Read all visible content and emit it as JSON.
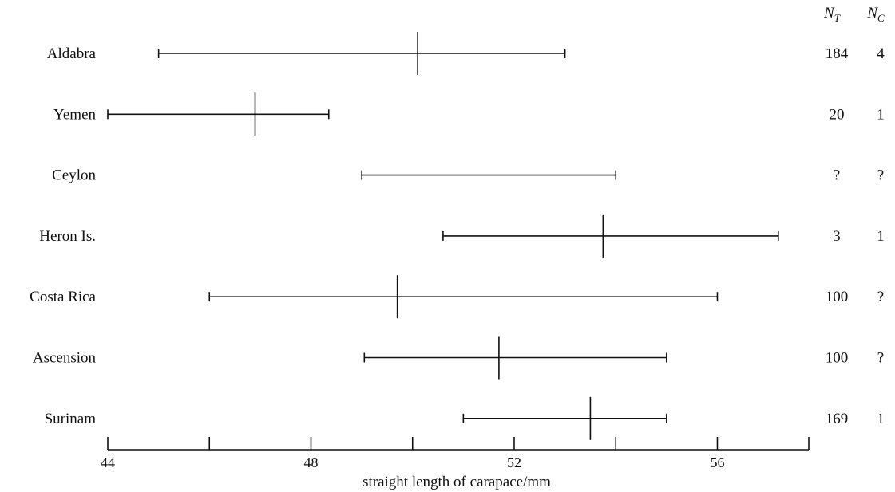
{
  "chart_data": {
    "type": "range",
    "xlabel": "straight length of carapace/mm",
    "xlim": [
      44,
      57.8
    ],
    "x_ticks": [
      44,
      46,
      48,
      50,
      52,
      54,
      56
    ],
    "x_tick_labels": [
      "44",
      "",
      "48",
      "",
      "52",
      "",
      "56"
    ],
    "count_headers": [
      {
        "main": "N",
        "sub": "T"
      },
      {
        "main": "N",
        "sub": "C"
      }
    ],
    "rows": [
      {
        "label": "Aldabra",
        "min": 45.0,
        "max": 53.0,
        "mean": 50.1,
        "N_T": "184",
        "N_C": "4"
      },
      {
        "label": "Yemen",
        "min": 44.0,
        "max": 48.35,
        "mean": 46.9,
        "N_T": "20",
        "N_C": "1"
      },
      {
        "label": "Ceylon",
        "min": 49.0,
        "max": 54.0,
        "mean": null,
        "N_T": "?",
        "N_C": "?"
      },
      {
        "label": "Heron Is.",
        "min": 50.6,
        "max": 57.2,
        "mean": 53.75,
        "N_T": "3",
        "N_C": "1"
      },
      {
        "label": "Costa Rica",
        "min": 46.0,
        "max": 56.0,
        "mean": 49.7,
        "N_T": "100",
        "N_C": "?"
      },
      {
        "label": "Ascension",
        "min": 49.05,
        "max": 55.0,
        "mean": 51.7,
        "N_T": "100",
        "N_C": "?"
      },
      {
        "label": "Surinam",
        "min": 51.0,
        "max": 55.0,
        "mean": 53.5,
        "N_T": "169",
        "N_C": "1"
      }
    ]
  }
}
